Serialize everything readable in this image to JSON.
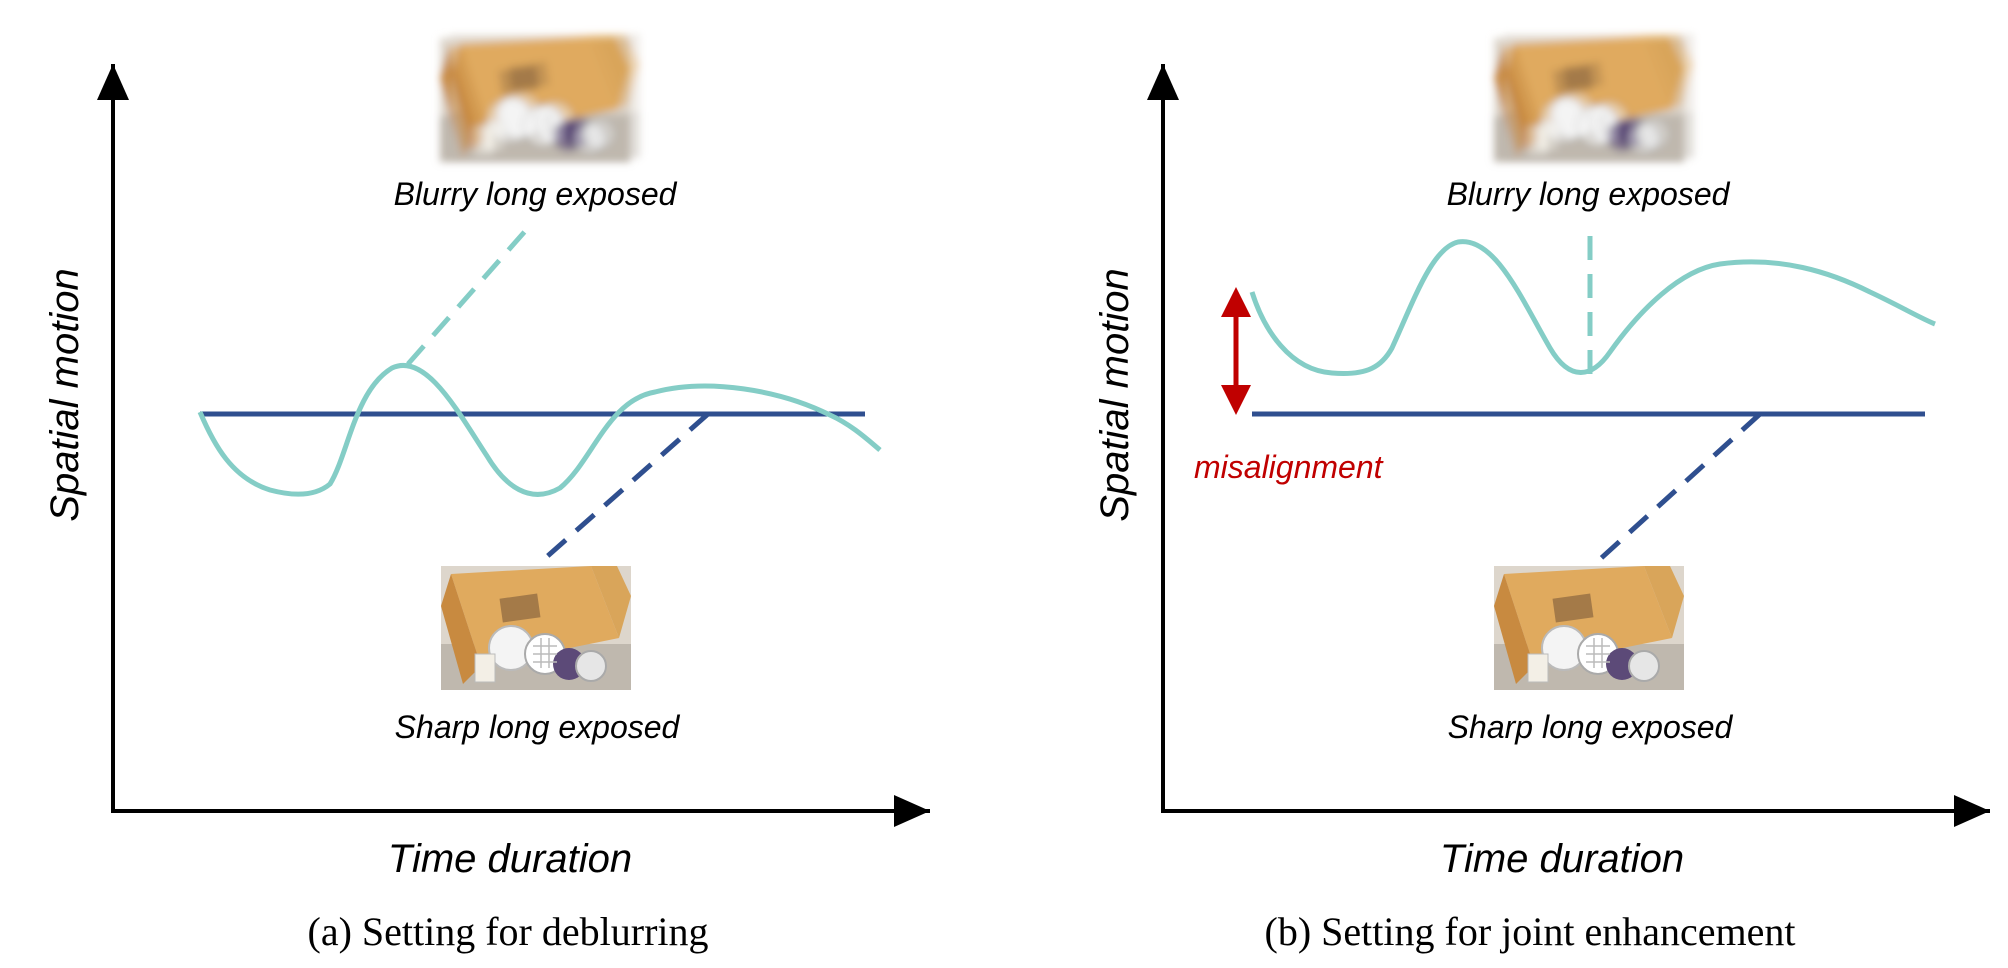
{
  "colors": {
    "teal": "#84cdc6",
    "navy": "#2f4f8f",
    "red": "#c00000",
    "axis": "#000000"
  },
  "panel_a": {
    "y_label": "Spatial motion",
    "x_label": "Time duration",
    "top_image_label": "Blurry long exposed",
    "bottom_image_label": "Sharp long exposed",
    "caption": "(a) Setting for deblurring"
  },
  "panel_b": {
    "y_label": "Spatial motion",
    "x_label": "Time duration",
    "top_image_label": "Blurry long exposed",
    "bottom_image_label": "Sharp long exposed",
    "misalignment_label": "misalignment",
    "caption": "(b) Setting for joint enhancement"
  },
  "icons": {
    "blurry_thumbnail": "blurry-box-photo-icon",
    "sharp_thumbnail": "sharp-box-photo-icon"
  }
}
